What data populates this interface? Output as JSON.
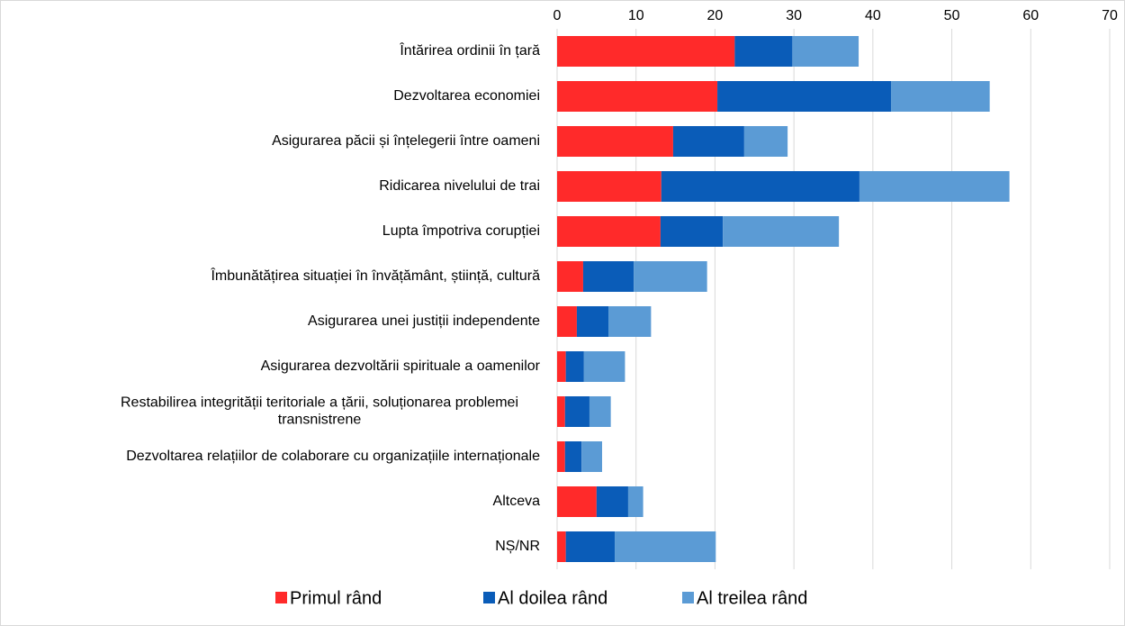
{
  "chart_data": {
    "type": "stacked_barh",
    "categories": [
      "Întărirea ordinii în țară",
      "Dezvoltarea economiei",
      "Asigurarea păcii și înțelegerii între oameni",
      "Ridicarea nivelului de trai",
      "Lupta împotriva corupției",
      "Îmbunătățirea situației în învățământ, știință, cultură",
      "Asigurarea unei justiții independente",
      "Asigurarea dezvoltării spirituale a oamenilor",
      "Restabilirea integrității teritoriale a țării, soluționarea problemei transnistrene",
      "Dezvoltarea relațiilor de colaborare cu organizațiile internaționale",
      "Altceva",
      "NȘ/NR"
    ],
    "series": [
      {
        "name": "Primul rând",
        "color": "#ff2a2a",
        "values": [
          22.5,
          20.3,
          14.7,
          13.2,
          13.1,
          3.3,
          2.5,
          1.1,
          1.0,
          1.0,
          5.0,
          1.1
        ]
      },
      {
        "name": "Al doilea rând",
        "color": "#0a5cb8",
        "values": [
          7.3,
          22.0,
          9.0,
          25.1,
          7.9,
          6.4,
          4.0,
          2.3,
          3.1,
          2.1,
          4.0,
          6.2
        ]
      },
      {
        "name": "Al treilea rând",
        "color": "#5b9bd5",
        "values": [
          8.4,
          12.5,
          5.5,
          19.0,
          14.7,
          9.3,
          5.4,
          5.2,
          2.7,
          2.6,
          1.9,
          12.8
        ]
      }
    ],
    "xlim": [
      0,
      70
    ],
    "xticks": [
      0,
      10,
      20,
      30,
      40,
      50,
      60,
      70
    ],
    "grid": true,
    "legend": "bottom"
  }
}
